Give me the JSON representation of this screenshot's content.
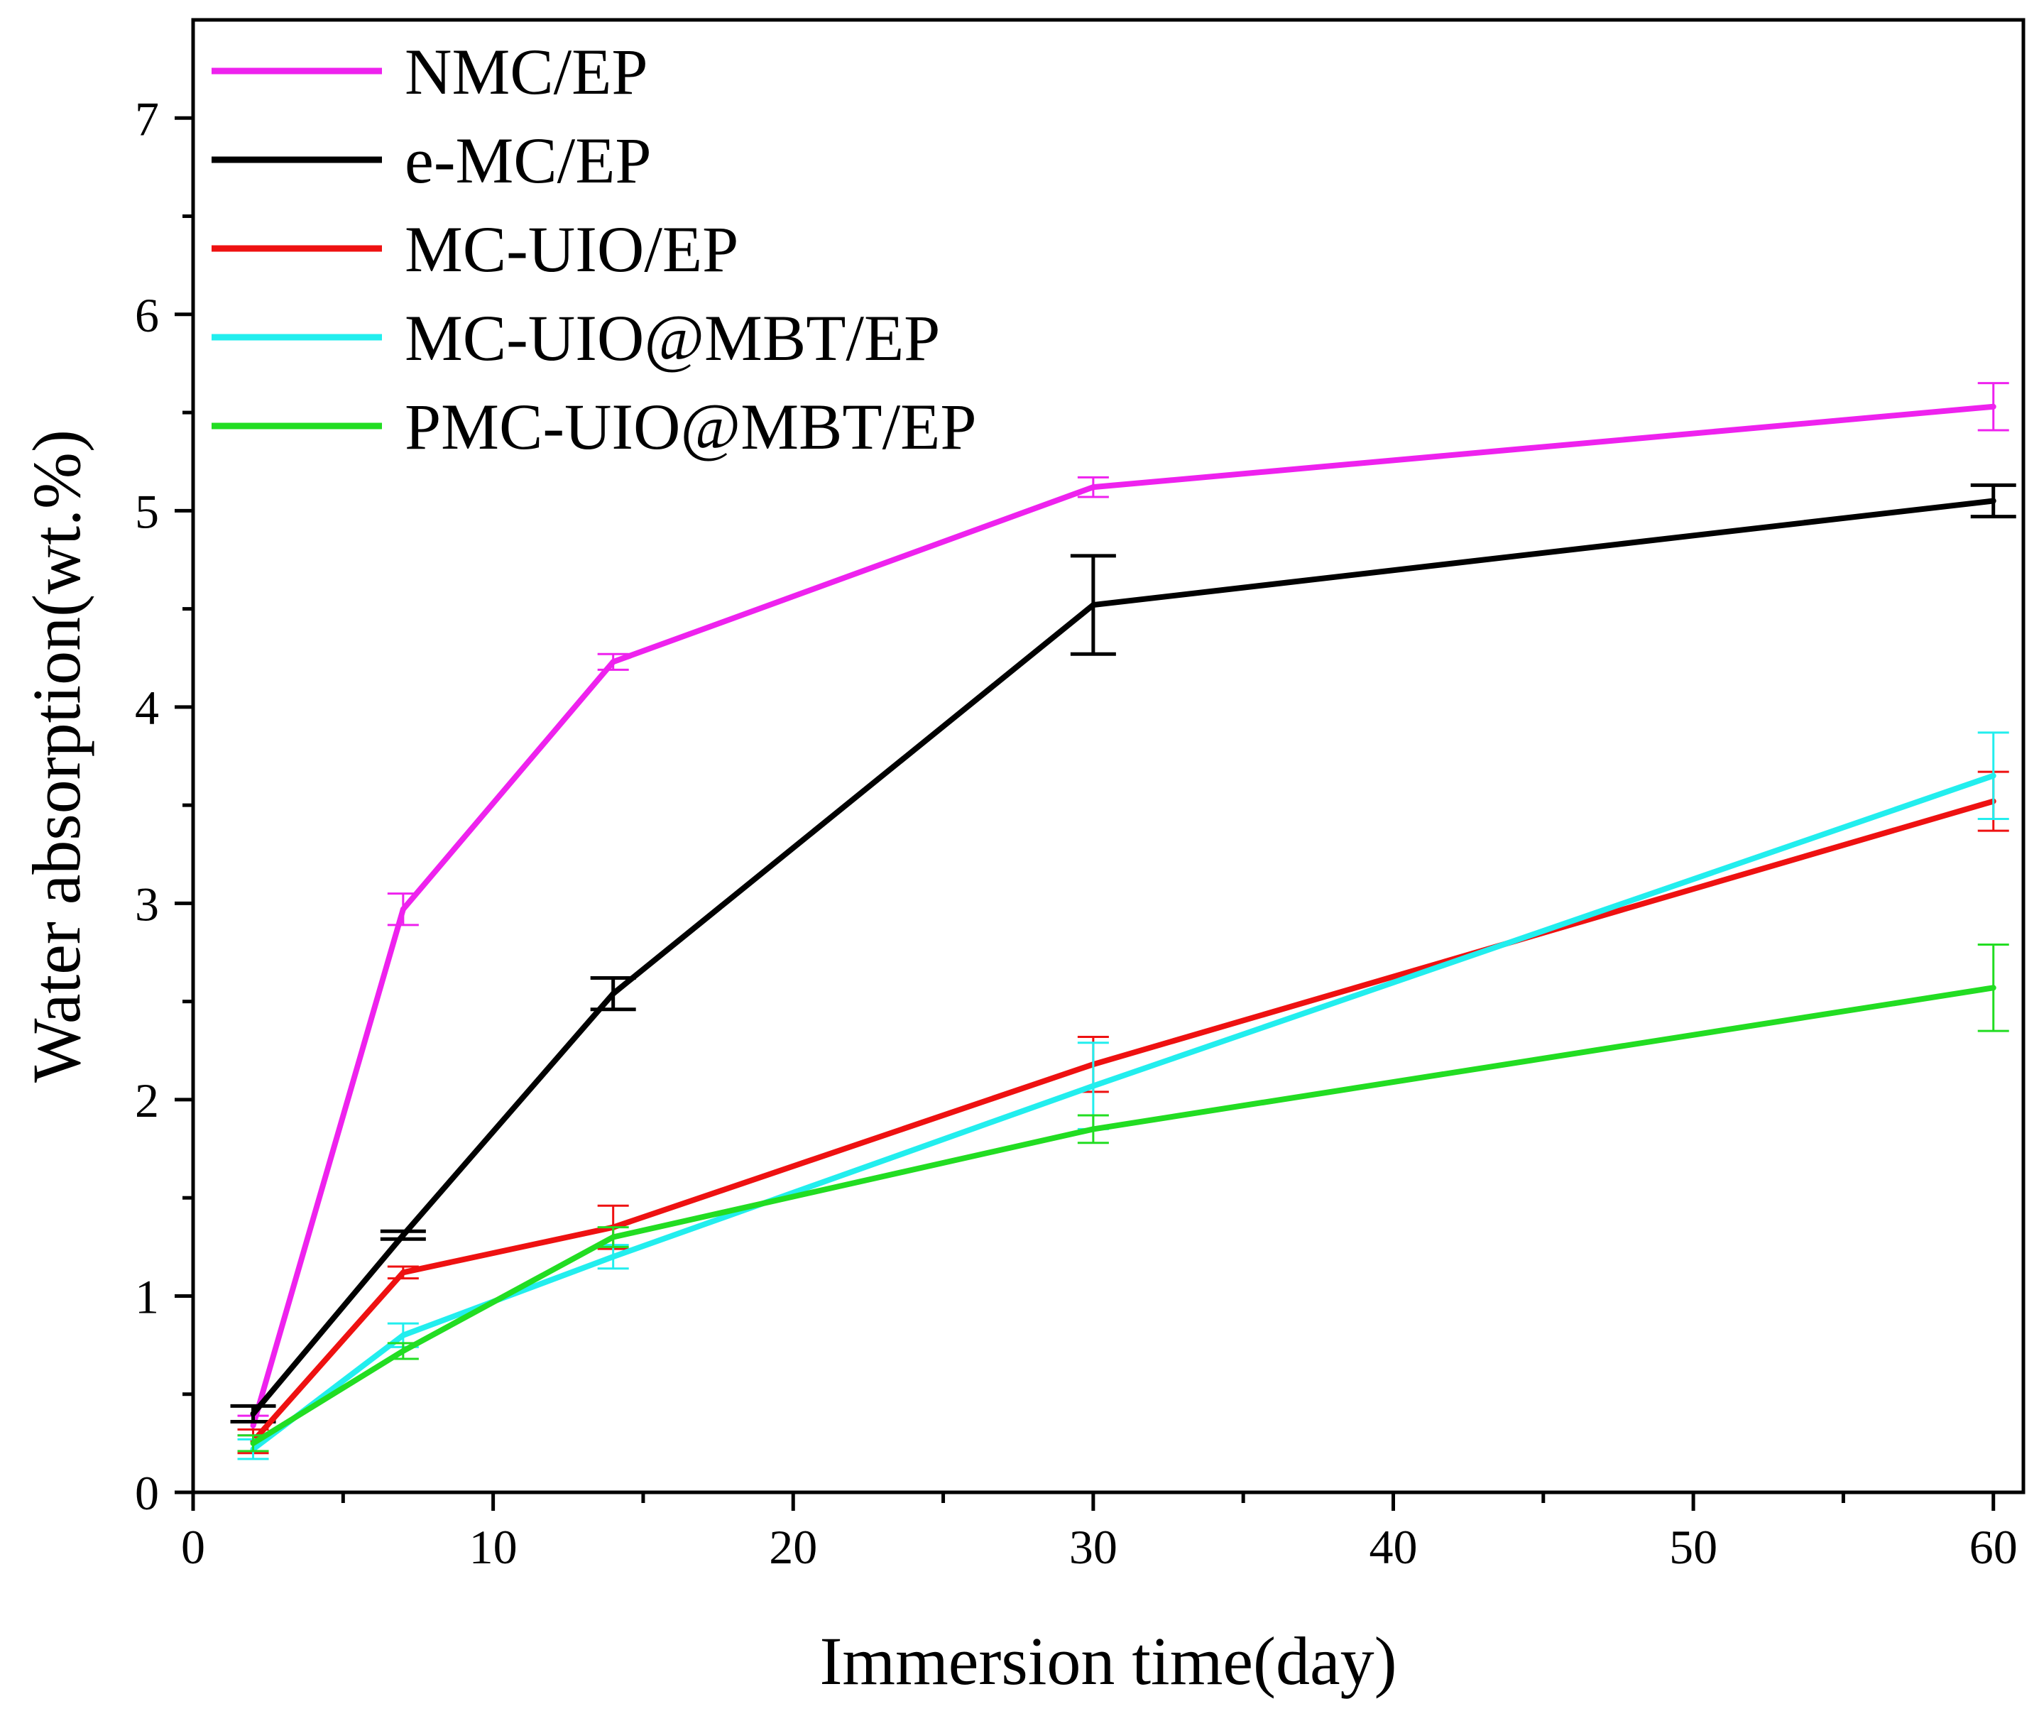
{
  "chart_data": {
    "type": "line",
    "title": "",
    "xlabel": "Immersion time(day)",
    "ylabel": "Water absorption(wt.%)",
    "xlim": [
      0,
      61
    ],
    "ylim": [
      0,
      7.5
    ],
    "xticks": [
      0,
      10,
      20,
      30,
      40,
      50,
      60
    ],
    "yticks": [
      0,
      1,
      2,
      3,
      4,
      5,
      6,
      7
    ],
    "xtick_labels": [
      "0",
      "10",
      "20",
      "30",
      "40",
      "50",
      "60"
    ],
    "ytick_labels": [
      "0",
      "1",
      "2",
      "3",
      "4",
      "5",
      "6",
      "7"
    ],
    "x": [
      2,
      7,
      14,
      30,
      60
    ],
    "grid": false,
    "legend_position": "top-left",
    "series": [
      {
        "name": "NMC/EP",
        "color": "#ee22ee",
        "values": [
          0.34,
          2.97,
          4.23,
          5.12,
          5.53
        ],
        "errors": [
          0.05,
          0.08,
          0.04,
          0.05,
          0.12
        ]
      },
      {
        "name": "e-MC/EP",
        "color": "#000000",
        "values": [
          0.4,
          1.31,
          2.54,
          4.52,
          5.05
        ],
        "errors": [
          0.04,
          0.02,
          0.08,
          0.25,
          0.08
        ]
      },
      {
        "name": "MC-UIO/EP",
        "color": "#ee1111",
        "values": [
          0.26,
          1.12,
          1.35,
          2.18,
          3.52
        ],
        "errors": [
          0.06,
          0.03,
          0.11,
          0.14,
          0.15
        ]
      },
      {
        "name": "MC-UIO@MBT/EP",
        "color": "#22eeee",
        "values": [
          0.22,
          0.8,
          1.2,
          2.07,
          3.65
        ],
        "errors": [
          0.05,
          0.06,
          0.06,
          0.22,
          0.22
        ]
      },
      {
        "name": "PMC-UIO@MBT/EP",
        "color": "#22dd22",
        "values": [
          0.25,
          0.72,
          1.3,
          1.85,
          2.57
        ],
        "errors": [
          0.04,
          0.04,
          0.05,
          0.07,
          0.22
        ]
      }
    ]
  }
}
